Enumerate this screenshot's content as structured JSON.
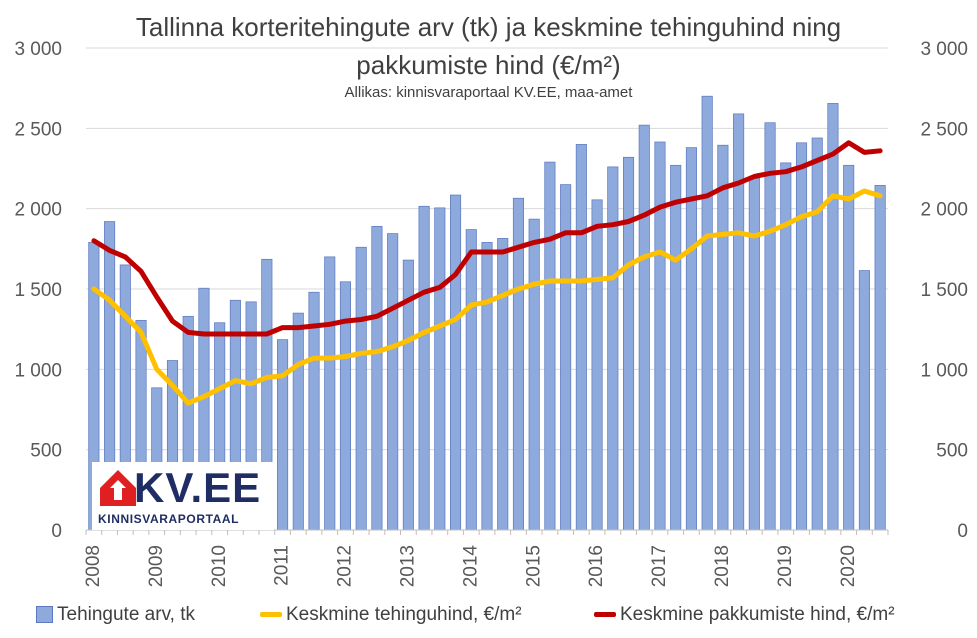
{
  "chart_data": {
    "type": "bar",
    "title": "Tallinna korteritehingute arv (tk) ja keskmine tehinguhind ning pakkumiste hind (€/m²)",
    "subtitle": "Allikas: kinnisvaraportaal KV.EE, maa-amet",
    "x_labels": [
      "2008",
      "2009",
      "2010",
      "2011",
      "2012",
      "2013",
      "2014",
      "2015",
      "2016",
      "2017",
      "2018",
      "2019",
      "2020"
    ],
    "y_left_ticks": [
      "0",
      "500",
      "1 000",
      "1 500",
      "2 000",
      "2 500",
      "3 000"
    ],
    "y_right_ticks": [
      "0",
      "500",
      "1 000",
      "1 500",
      "2 000",
      "2 500",
      "3 000"
    ],
    "ylim": [
      0,
      3000
    ],
    "x_start": 2008,
    "quarters": 51,
    "series": [
      {
        "name": "Tehingute arv, tk",
        "type": "bar",
        "color": "#8ea9db",
        "values": [
          1790,
          1920,
          1650,
          1305,
          885,
          1055,
          1330,
          1505,
          1290,
          1430,
          1420,
          1685,
          1185,
          1350,
          1480,
          1700,
          1545,
          1760,
          1890,
          1845,
          1680,
          2015,
          2005,
          2085,
          1870,
          1790,
          1815,
          2065,
          1935,
          2290,
          2150,
          2400,
          2055,
          2260,
          2320,
          2520,
          2415,
          2270,
          2380,
          2700,
          2395,
          2590,
          2190,
          2535,
          2285,
          2410,
          2440,
          2655,
          2270,
          1615,
          2145
        ]
      },
      {
        "name": "Keskmine tehinguhind, €/m²",
        "type": "line",
        "color": "#ffc000",
        "values": [
          1500,
          1430,
          1330,
          1230,
          1000,
          900,
          790,
          830,
          880,
          930,
          910,
          950,
          960,
          1030,
          1070,
          1070,
          1080,
          1100,
          1110,
          1140,
          1180,
          1230,
          1270,
          1310,
          1400,
          1420,
          1460,
          1500,
          1530,
          1550,
          1550,
          1550,
          1560,
          1570,
          1650,
          1700,
          1730,
          1680,
          1750,
          1830,
          1840,
          1850,
          1830,
          1860,
          1900,
          1950,
          1980,
          2080,
          2060,
          2110,
          2080
        ]
      },
      {
        "name": "Keskmine pakkumiste hind, €/m²",
        "type": "line",
        "color": "#c00000",
        "values": [
          1800,
          1740,
          1700,
          1610,
          1450,
          1300,
          1230,
          1220,
          1220,
          1220,
          1220,
          1220,
          1260,
          1260,
          1270,
          1280,
          1300,
          1310,
          1330,
          1380,
          1430,
          1480,
          1510,
          1590,
          1730,
          1730,
          1730,
          1760,
          1790,
          1810,
          1850,
          1850,
          1890,
          1900,
          1920,
          1960,
          2010,
          2040,
          2060,
          2080,
          2130,
          2160,
          2200,
          2220,
          2230,
          2260,
          2300,
          2340,
          2410,
          2350,
          2360
        ]
      }
    ],
    "grid": true,
    "legend_position": "bottom"
  },
  "logo": {
    "text": "KV.EE",
    "tagline": "KINNISVARAPORTAAL"
  }
}
